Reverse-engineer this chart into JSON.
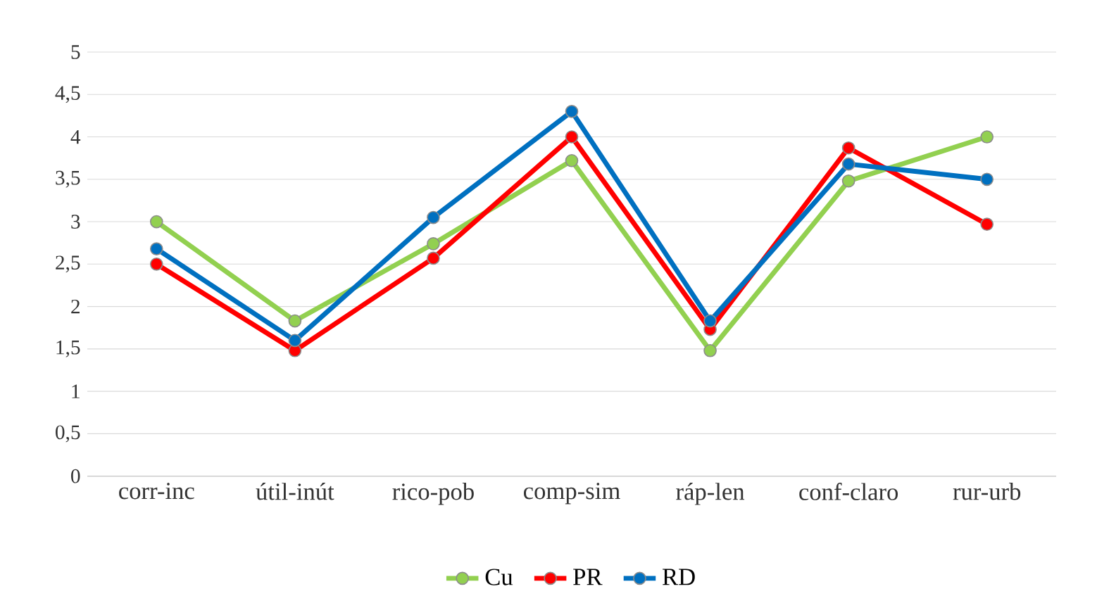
{
  "chart_data": {
    "type": "line",
    "categories": [
      "corr-inc",
      "útil-inút",
      "rico-pob",
      "comp-sim",
      "ráp-len",
      "conf-claro",
      "rur-urb"
    ],
    "series": [
      {
        "name": "Cu",
        "color": "#92d050",
        "values": [
          3.0,
          1.83,
          2.74,
          3.72,
          1.48,
          3.48,
          4.0
        ]
      },
      {
        "name": "PR",
        "color": "#ff0000",
        "values": [
          2.5,
          1.48,
          2.57,
          4.0,
          1.73,
          3.87,
          2.97
        ]
      },
      {
        "name": "RD",
        "color": "#0070c0",
        "values": [
          2.68,
          1.6,
          3.05,
          4.3,
          1.83,
          3.68,
          3.5
        ]
      }
    ],
    "ylim": [
      0,
      5
    ],
    "yticks": [
      {
        "value": 0,
        "label": "0"
      },
      {
        "value": 0.5,
        "label": "0,5"
      },
      {
        "value": 1,
        "label": "1"
      },
      {
        "value": 1.5,
        "label": "1,5"
      },
      {
        "value": 2,
        "label": "2"
      },
      {
        "value": 2.5,
        "label": "2,5"
      },
      {
        "value": 3,
        "label": "3"
      },
      {
        "value": 3.5,
        "label": "3,5"
      },
      {
        "value": 4,
        "label": "4"
      },
      {
        "value": 4.5,
        "label": "4,5"
      },
      {
        "value": 5,
        "label": "5"
      }
    ],
    "grid": "y",
    "legend": "bottom",
    "marker": "circle",
    "line_style": "solid"
  }
}
